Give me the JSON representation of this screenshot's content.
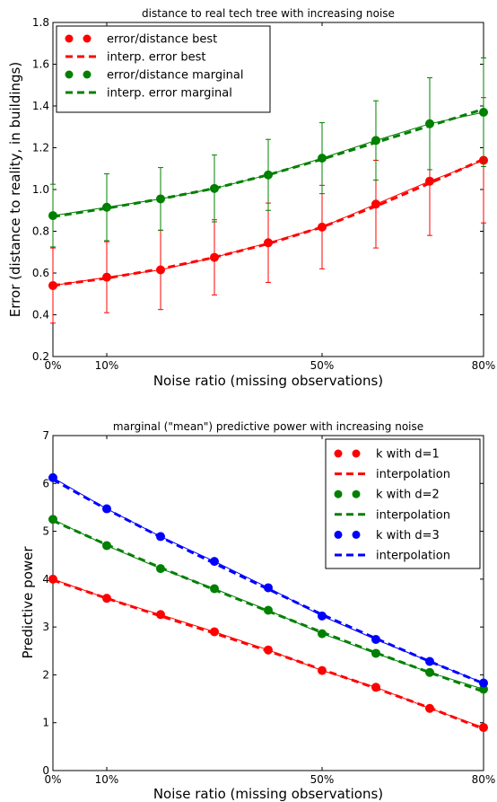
{
  "chart_data": [
    {
      "type": "line",
      "title": "distance to real tech tree with increasing noise",
      "xlabel": "Noise ratio (missing observations)",
      "ylabel": "Error (distance to reality, in buildings)",
      "xlim": [
        0,
        80
      ],
      "ylim": [
        0.2,
        1.8
      ],
      "x_ticks": [
        0,
        10,
        50,
        80
      ],
      "x_tick_labels": [
        "0%",
        "10%",
        "50%",
        "80%"
      ],
      "y_ticks": [
        0.2,
        0.4,
        0.6,
        0.8,
        1.0,
        1.2,
        1.4,
        1.6,
        1.8
      ],
      "y_tick_labels": [
        "0.2",
        "0.4",
        "0.6",
        "0.8",
        "1.0",
        "1.2",
        "1.4",
        "1.6",
        "1.8"
      ],
      "legend_position": "top-left",
      "x": [
        0,
        10,
        20,
        30,
        40,
        50,
        60,
        70,
        80
      ],
      "series": [
        {
          "name": "error/distance best",
          "kind": "points",
          "color": "#ff0000",
          "values": [
            0.54,
            0.58,
            0.615,
            0.675,
            0.745,
            0.82,
            0.93,
            1.04,
            1.14
          ],
          "errors": [
            0.18,
            0.17,
            0.19,
            0.18,
            0.19,
            0.2,
            0.21,
            0.26,
            0.3
          ]
        },
        {
          "name": "interp. error best",
          "kind": "dashed",
          "color": "#ff0000",
          "values": [
            0.54,
            0.575,
            0.62,
            0.675,
            0.74,
            0.82,
            0.92,
            1.03,
            1.145
          ]
        },
        {
          "name": "error/distance marginal",
          "kind": "points",
          "color": "#008000",
          "values": [
            0.875,
            0.915,
            0.955,
            1.005,
            1.07,
            1.15,
            1.235,
            1.315,
            1.37
          ],
          "errors": [
            0.15,
            0.16,
            0.15,
            0.16,
            0.17,
            0.17,
            0.19,
            0.22,
            0.26
          ]
        },
        {
          "name": "interp. error marginal",
          "kind": "dashed",
          "color": "#008000",
          "values": [
            0.87,
            0.91,
            0.955,
            1.005,
            1.07,
            1.145,
            1.225,
            1.305,
            1.385
          ]
        }
      ]
    },
    {
      "type": "line",
      "title": "marginal (\"mean\") predictive power with increasing noise",
      "xlabel": "Noise ratio (missing observations)",
      "ylabel": "Predictive power",
      "xlim": [
        0,
        80
      ],
      "ylim": [
        0,
        7
      ],
      "x_ticks": [
        0,
        10,
        50,
        80
      ],
      "x_tick_labels": [
        "0%",
        "10%",
        "50%",
        "80%"
      ],
      "y_ticks": [
        0,
        1,
        2,
        3,
        4,
        5,
        6,
        7
      ],
      "y_tick_labels": [
        "0",
        "1",
        "2",
        "3",
        "4",
        "5",
        "6",
        "7"
      ],
      "legend_position": "top-right",
      "x": [
        0,
        10,
        20,
        30,
        40,
        50,
        60,
        70,
        80
      ],
      "series": [
        {
          "name": "k with d=1",
          "kind": "points",
          "color": "#ff0000",
          "values": [
            4.0,
            3.6,
            3.26,
            2.9,
            2.52,
            2.09,
            1.74,
            1.3,
            0.9
          ]
        },
        {
          "name": "interpolation",
          "kind": "dashed",
          "color": "#ff0000",
          "values": [
            3.98,
            3.6,
            3.23,
            2.87,
            2.5,
            2.11,
            1.72,
            1.31,
            0.87
          ]
        },
        {
          "name": "k with d=2",
          "kind": "points",
          "color": "#008000",
          "values": [
            5.25,
            4.7,
            4.22,
            3.8,
            3.35,
            2.86,
            2.45,
            2.05,
            1.7
          ]
        },
        {
          "name": "interpolation",
          "kind": "dashed",
          "color": "#008000",
          "values": [
            5.22,
            4.72,
            4.24,
            3.78,
            3.33,
            2.89,
            2.46,
            2.05,
            1.65
          ]
        },
        {
          "name": "k with d=3",
          "kind": "points",
          "color": "#0000ff",
          "values": [
            6.12,
            5.47,
            4.89,
            4.37,
            3.82,
            3.23,
            2.74,
            2.28,
            1.83
          ]
        },
        {
          "name": "interpolation",
          "kind": "dashed",
          "color": "#0000ff",
          "values": [
            6.08,
            5.46,
            4.88,
            4.33,
            3.79,
            3.26,
            2.76,
            2.28,
            1.82
          ]
        }
      ]
    }
  ]
}
